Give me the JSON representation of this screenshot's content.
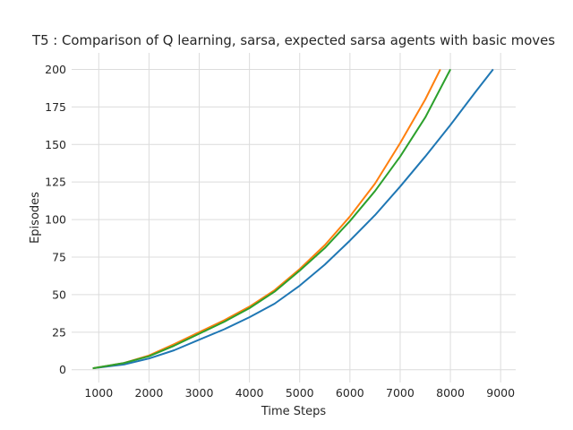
{
  "chart_data": {
    "type": "line",
    "title": "T5 : Comparison of Q learning, sarsa, expected sarsa agents with basic moves",
    "xlabel": "Time Steps",
    "ylabel": "Episodes",
    "xlim": [
      460,
      9300
    ],
    "ylim": [
      -8.5,
      211
    ],
    "xticks": [
      1000,
      2000,
      3000,
      4000,
      5000,
      6000,
      7000,
      8000,
      9000
    ],
    "yticks": [
      0,
      25,
      50,
      75,
      100,
      125,
      150,
      175,
      200
    ],
    "grid": true,
    "legend": "none",
    "colors": [
      "#1f77b4",
      "#ff7f0e",
      "#2ca02c"
    ],
    "series": [
      {
        "x": [
          880,
          1500,
          2000,
          2500,
          3000,
          3500,
          4000,
          4500,
          5000,
          5500,
          6000,
          6500,
          7000,
          7500,
          8000,
          8500,
          8850
        ],
        "y": [
          1,
          3.5,
          7.5,
          13,
          20,
          27,
          35,
          44,
          56,
          70,
          86,
          103,
          122,
          142,
          163,
          185,
          200
        ]
      },
      {
        "x": [
          880,
          1500,
          2000,
          2500,
          3000,
          3500,
          4000,
          4500,
          5000,
          5500,
          6000,
          6500,
          7000,
          7500,
          7800
        ],
        "y": [
          1,
          4.5,
          9.5,
          17,
          25,
          33,
          42,
          53,
          67,
          83,
          102,
          124,
          151,
          180,
          200
        ]
      },
      {
        "x": [
          880,
          1500,
          2000,
          2500,
          3000,
          3500,
          4000,
          4500,
          5000,
          5500,
          6000,
          6500,
          7000,
          7500,
          8000
        ],
        "y": [
          1,
          4.5,
          9,
          16,
          24,
          32,
          41,
          52,
          66,
          81,
          99,
          119,
          142,
          168,
          200
        ]
      }
    ]
  }
}
